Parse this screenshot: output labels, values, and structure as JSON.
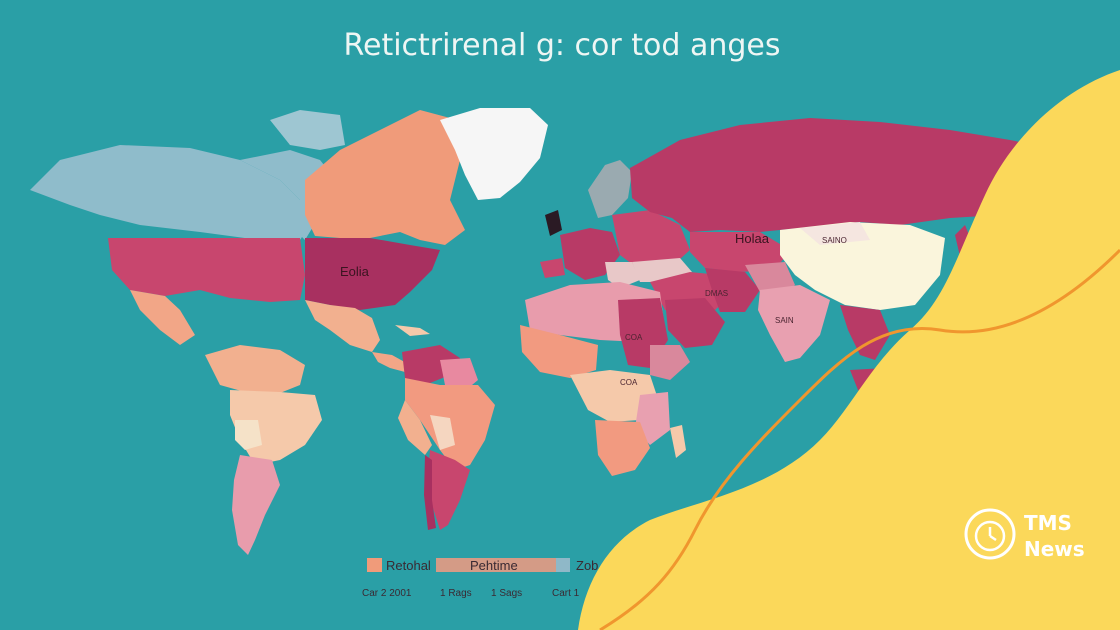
{
  "title": "Retictrirenal g: cor tod anges",
  "map_labels": {
    "na": "Eolia",
    "russia": "Holaa",
    "china": "SAINO",
    "sa_arabia": "...",
    "egypt": "COA",
    "horn": "COA",
    "india": "SAIN",
    "arabia": "DMAS",
    "africa": "COA"
  },
  "legend": {
    "items": [
      {
        "label": "Retohal",
        "color": "#f09b7a"
      },
      {
        "label": "Pehtime",
        "color": "#f29a80"
      },
      {
        "label": "Zob",
        "color": "#8fb8c8"
      }
    ],
    "captions": [
      "Car 2 2001",
      "1 Rags",
      "1 Sags",
      "Cart 1"
    ]
  },
  "brand": {
    "line1": "TMS",
    "line2": "News"
  },
  "colors": {
    "ocean": "#2a9fa6",
    "crimson": "#b83a66",
    "pink": "#d9889c",
    "salmon": "#f09b7a",
    "peach": "#f5c9aa",
    "lightblue": "#8fbccb",
    "cream": "#faf5dc",
    "yellow": "#fbd85a",
    "orange_line": "#f0962e"
  }
}
